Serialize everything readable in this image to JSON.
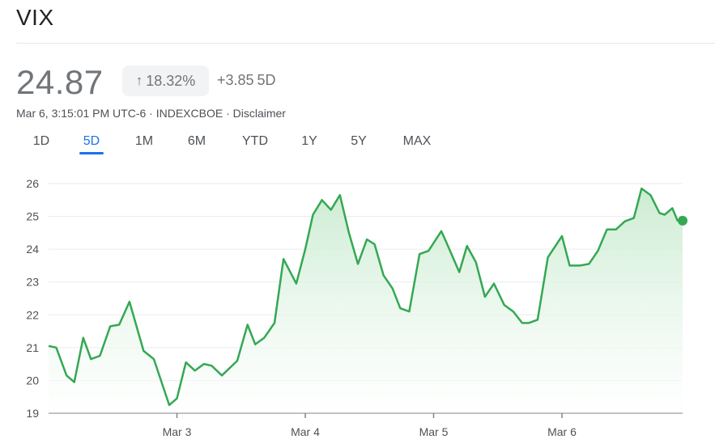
{
  "header": {
    "title": "VIX",
    "price": "24.87",
    "percent_change": "18.32%",
    "percent_icon": "arrow-up-icon",
    "abs_change": "+3.85",
    "change_period": "5D",
    "meta": "Mar 6, 3:15:01 PM UTC-6 · INDEXCBOE · Disclaimer"
  },
  "tabs": [
    {
      "label": "1D",
      "active": false
    },
    {
      "label": "5D",
      "active": true
    },
    {
      "label": "1M",
      "active": false
    },
    {
      "label": "6M",
      "active": false
    },
    {
      "label": "YTD",
      "active": false
    },
    {
      "label": "1Y",
      "active": false
    },
    {
      "label": "5Y",
      "active": false
    },
    {
      "label": "MAX",
      "active": false
    }
  ],
  "colors": {
    "line": "#34a853",
    "fill_top": "#c9ebd0",
    "grid": "#e8eaed",
    "active_tab": "#1a73e8"
  },
  "chart_data": {
    "type": "area",
    "title": "",
    "xlabel": "",
    "ylabel": "",
    "ylim": [
      19,
      26
    ],
    "yticks": [
      26,
      25,
      24,
      23,
      22,
      21,
      20,
      19
    ],
    "grid": true,
    "x_tick_labels": [
      {
        "label": "Mar 3",
        "day": 1
      },
      {
        "label": "Mar 4",
        "day": 2
      },
      {
        "label": "Mar 5",
        "day": 3
      },
      {
        "label": "Mar 6",
        "day": 4
      }
    ],
    "series": [
      {
        "x": [
          0.0,
          0.06,
          0.14,
          0.2,
          0.27,
          0.33,
          0.4,
          0.48,
          0.55,
          0.63,
          0.74,
          0.82,
          0.94,
          1.0,
          1.07,
          1.14,
          1.21,
          1.27,
          1.35,
          1.47,
          1.55,
          1.61,
          1.68,
          1.76,
          1.83,
          1.93,
          2.0,
          2.06,
          2.13,
          2.2,
          2.27,
          2.34,
          2.41,
          2.48,
          2.54,
          2.61,
          2.68,
          2.74,
          2.81,
          2.89,
          2.96,
          3.06,
          3.1,
          3.2,
          3.26,
          3.33,
          3.4,
          3.47,
          3.55,
          3.62,
          3.69,
          3.74,
          3.81,
          3.89,
          4.0,
          4.06,
          4.14,
          4.21,
          4.28,
          4.35,
          4.42,
          4.49,
          4.56,
          4.62,
          4.69,
          4.76,
          4.8,
          4.86,
          4.9,
          4.94
        ],
        "y": [
          21.05,
          21.0,
          20.15,
          19.95,
          21.3,
          20.65,
          20.75,
          21.65,
          21.7,
          22.4,
          20.9,
          20.65,
          19.25,
          19.45,
          20.55,
          20.3,
          20.5,
          20.45,
          20.15,
          20.6,
          21.7,
          21.1,
          21.3,
          21.75,
          23.7,
          22.95,
          24.0,
          25.05,
          25.5,
          25.2,
          25.65,
          24.5,
          23.55,
          24.3,
          24.15,
          23.2,
          22.8,
          22.2,
          22.1,
          23.85,
          23.95,
          24.55,
          24.2,
          23.3,
          24.1,
          23.6,
          22.55,
          22.95,
          22.3,
          22.1,
          21.75,
          21.75,
          21.85,
          23.75,
          24.4,
          23.5,
          23.5,
          23.55,
          23.95,
          24.6,
          24.6,
          24.85,
          24.95,
          25.85,
          25.65,
          25.1,
          25.05,
          25.25,
          24.87,
          24.87
        ]
      }
    ]
  }
}
